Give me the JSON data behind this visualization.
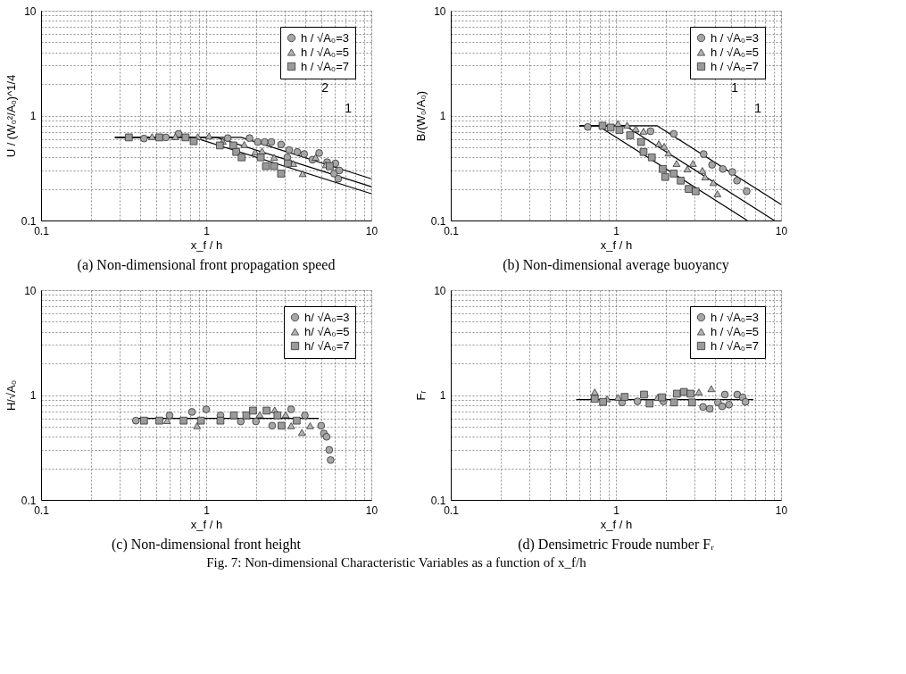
{
  "chart_data": [
    {
      "type": "scatter",
      "title": "(a) Non-dimensional front propagation speed",
      "xlabel": "x_f / h",
      "ylabel": "U / (W₀²/A₀)^1/4",
      "log": "xy",
      "xlim": [
        0.1,
        10
      ],
      "ylim": [
        0.1,
        10
      ],
      "xticks": [
        0.1,
        1,
        10
      ],
      "yticks": [
        0.1,
        1,
        10
      ],
      "grid": true,
      "legend": "top right",
      "annotations": [
        "2",
        "1"
      ],
      "series": [
        {
          "name": "h / √A₀=3",
          "color": "#a6a6a6",
          "marker": "circle",
          "x": [
            0.42,
            0.57,
            0.68,
            1.35,
            1.83,
            2.05,
            2.26,
            2.48,
            2.84,
            3.1,
            3.18,
            3.56,
            3.92,
            4.4,
            4.83,
            5.4,
            5.95,
            6.06,
            6.3,
            6.4
          ],
          "values": [
            0.605,
            0.62,
            0.67,
            0.61,
            0.61,
            0.56,
            0.56,
            0.56,
            0.53,
            0.4,
            0.47,
            0.45,
            0.43,
            0.38,
            0.44,
            0.36,
            0.28,
            0.35,
            0.25,
            0.3
          ]
        },
        {
          "name": "h / √A₀=5",
          "color": "#b4b4b4",
          "marker": "triangle",
          "x": [
            0.47,
            0.65,
            0.89,
            1.04,
            1.26,
            1.7,
            1.98,
            2.18,
            2.58,
            3.37,
            3.84,
            4.6,
            5.3
          ],
          "values": [
            0.63,
            0.63,
            0.63,
            0.64,
            0.57,
            0.53,
            0.45,
            0.46,
            0.4,
            0.35,
            0.28,
            0.4,
            0.34
          ]
        },
        {
          "name": "h / √A₀=7",
          "color": "#9a9a9a",
          "marker": "square",
          "x": [
            0.34,
            0.52,
            0.75,
            0.84,
            1.21,
            1.46,
            1.52,
            1.64,
            2.14,
            2.3,
            2.58,
            2.84,
            3.12,
            5.6
          ],
          "values": [
            0.62,
            0.62,
            0.62,
            0.57,
            0.52,
            0.52,
            0.45,
            0.4,
            0.4,
            0.33,
            0.33,
            0.28,
            0.35,
            0.33
          ]
        },
        {
          "type": "line",
          "color": "#000000",
          "marker": "none",
          "x": [
            0.28,
            1.63,
            10
          ],
          "values": [
            0.62,
            0.62,
            0.25
          ]
        },
        {
          "type": "line",
          "color": "#000000",
          "marker": "none",
          "x": [
            0.28,
            1.15,
            10
          ],
          "values": [
            0.62,
            0.62,
            0.21
          ]
        },
        {
          "type": "line",
          "color": "#000000",
          "marker": "none",
          "x": [
            0.28,
            0.84,
            10
          ],
          "values": [
            0.62,
            0.62,
            0.18
          ]
        }
      ]
    },
    {
      "type": "scatter",
      "title": "(b) Non-dimensional average buoyancy",
      "xlabel": "x_f / h",
      "ylabel": "B/(W₀/A₀)",
      "log": "xy",
      "xlim": [
        0.1,
        10
      ],
      "ylim": [
        0.1,
        10
      ],
      "xticks": [
        0.1,
        1,
        10
      ],
      "yticks": [
        0.1,
        1,
        10
      ],
      "grid": true,
      "legend": "top right",
      "annotations": [
        "1",
        "1"
      ],
      "series": [
        {
          "name": "h / √A₀=3",
          "color": "#a6a6a6",
          "marker": "circle",
          "x": [
            0.675,
            1.62,
            2.24,
            3.4,
            3.82,
            4.44,
            5.07,
            5.41,
            6.19
          ],
          "values": [
            0.78,
            0.71,
            0.67,
            0.43,
            0.34,
            0.31,
            0.29,
            0.24,
            0.19
          ]
        },
        {
          "name": "h / √A₀=5",
          "color": "#b4b4b4",
          "marker": "triangle",
          "x": [
            1.03,
            1.17,
            1.32,
            1.47,
            1.82,
            1.96,
            2.08,
            2.33,
            2.71,
            2.93,
            3.34,
            3.47,
            3.89,
            4.12
          ],
          "values": [
            0.84,
            0.81,
            0.75,
            0.71,
            0.54,
            0.51,
            0.44,
            0.35,
            0.31,
            0.35,
            0.3,
            0.26,
            0.23,
            0.18
          ]
        },
        {
          "name": "h / √A₀=7",
          "color": "#9a9a9a",
          "marker": "square",
          "x": [
            0.83,
            0.93,
            1.05,
            1.22,
            1.42,
            1.47,
            1.65,
            1.92,
            1.99,
            2.24,
            2.47,
            2.76,
            3.04
          ],
          "values": [
            0.8,
            0.77,
            0.73,
            0.65,
            0.56,
            0.45,
            0.4,
            0.31,
            0.26,
            0.28,
            0.24,
            0.2,
            0.19
          ]
        },
        {
          "type": "line",
          "color": "#000000",
          "marker": "none",
          "x": [
            0.6,
            1.78,
            10
          ],
          "values": [
            0.8,
            0.8,
            0.142
          ]
        },
        {
          "type": "line",
          "color": "#000000",
          "marker": "none",
          "x": [
            0.6,
            1.14,
            9.1
          ],
          "values": [
            0.8,
            0.8,
            0.1
          ]
        },
        {
          "type": "line",
          "color": "#000000",
          "marker": "none",
          "x": [
            0.6,
            0.78,
            6.25
          ],
          "values": [
            0.8,
            0.8,
            0.1
          ]
        }
      ]
    },
    {
      "type": "scatter",
      "title": "(c) Non-dimensional front height",
      "xlabel": "x_f / h",
      "ylabel": "H/√A₀",
      "log": "xy",
      "xlim": [
        0.1,
        10
      ],
      "ylim": [
        0.1,
        10
      ],
      "xticks": [
        0.1,
        1,
        10
      ],
      "yticks": [
        0.1,
        1,
        10
      ],
      "grid": true,
      "legend": "top right",
      "series": [
        {
          "name": "h/ √A₀=3",
          "color": "#a6a6a6",
          "marker": "circle",
          "x": [
            0.375,
            0.6,
            0.82,
            1.0,
            1.22,
            1.62,
            2.0,
            2.51,
            3.27,
            3.96,
            4.97,
            5.16,
            5.36,
            5.56,
            5.67
          ],
          "values": [
            0.57,
            0.64,
            0.69,
            0.73,
            0.64,
            0.56,
            0.56,
            0.51,
            0.73,
            0.64,
            0.51,
            0.43,
            0.4,
            0.3,
            0.24
          ]
        },
        {
          "name": "h/ √A₀=5",
          "color": "#b4b4b4",
          "marker": "triangle",
          "x": [
            0.58,
            0.88,
            2.11,
            2.6,
            3.03,
            3.27,
            3.8,
            4.26
          ],
          "values": [
            0.57,
            0.51,
            0.65,
            0.72,
            0.65,
            0.51,
            0.44,
            0.51
          ]
        },
        {
          "name": "h/ √A₀=7",
          "color": "#9a9a9a",
          "marker": "square",
          "x": [
            0.42,
            0.52,
            0.73,
            0.93,
            1.22,
            1.47,
            1.75,
            1.92,
            2.32,
            2.7,
            2.86,
            3.53
          ],
          "values": [
            0.57,
            0.57,
            0.57,
            0.57,
            0.57,
            0.64,
            0.64,
            0.71,
            0.71,
            0.64,
            0.51,
            0.57
          ]
        },
        {
          "type": "line",
          "color": "#000000",
          "marker": "none",
          "x": [
            0.37,
            4.8
          ],
          "values": [
            0.6,
            0.6
          ]
        }
      ]
    },
    {
      "type": "scatter",
      "title": "(d) Densimetric Froude number Fᵣ",
      "xlabel": "x_f / h",
      "ylabel": "Fᵣ",
      "log": "xy",
      "xlim": [
        0.1,
        10
      ],
      "ylim": [
        0.1,
        10
      ],
      "xticks": [
        0.1,
        1,
        10
      ],
      "yticks": [
        0.1,
        1,
        10
      ],
      "grid": true,
      "legend": "top right",
      "annotations": [
        "Fig. 7: Non-dimensional Characteristic Variables as a function of x_f/h"
      ],
      "series": [
        {
          "name": "h / √A₀=3",
          "color": "#a6a6a6",
          "marker": "circle",
          "x": [
            1.09,
            1.35,
            1.94,
            3.37,
            3.7,
            4.15,
            4.4,
            4.57,
            4.84,
            5.43,
            5.86,
            6.09
          ],
          "values": [
            0.85,
            0.87,
            0.87,
            0.77,
            0.74,
            0.85,
            0.78,
            1.01,
            0.81,
            1.01,
            0.95,
            0.86
          ]
        },
        {
          "name": "h / √A₀=5",
          "color": "#b4b4b4",
          "marker": "triangle",
          "x": [
            0.745,
            0.885,
            1.03,
            1.79,
            3.18,
            3.78
          ],
          "values": [
            1.07,
            0.92,
            0.95,
            0.95,
            1.07,
            1.15
          ]
        },
        {
          "name": "h / √A₀=7",
          "color": "#9a9a9a",
          "marker": "square",
          "x": [
            0.745,
            0.836,
            1.13,
            1.48,
            1.6,
            1.9,
            2.25,
            2.34,
            2.58,
            2.83,
            2.89
          ],
          "values": [
            0.92,
            0.86,
            0.96,
            1.01,
            0.83,
            0.95,
            0.85,
            1.03,
            1.07,
            1.03,
            0.85
          ]
        },
        {
          "type": "line",
          "color": "#000000",
          "marker": "none",
          "x": [
            0.575,
            6.8
          ],
          "values": [
            0.906,
            0.906
          ]
        }
      ]
    }
  ]
}
